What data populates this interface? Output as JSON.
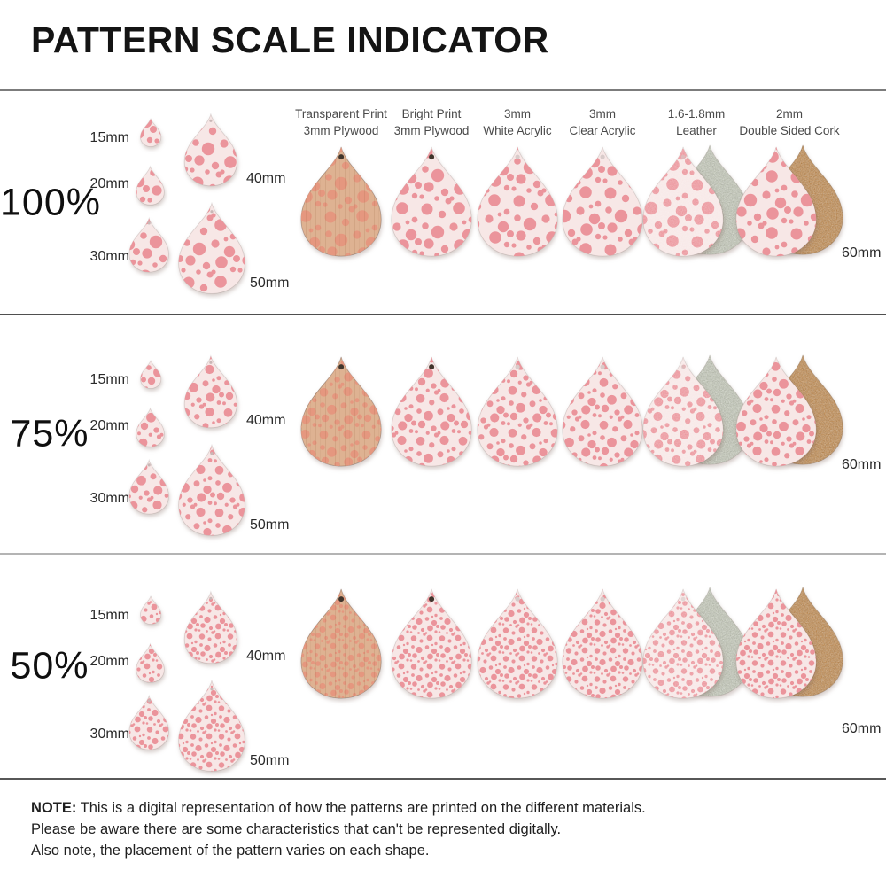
{
  "title": "PATTERN SCALE INDICATOR",
  "size_labels": [
    "15mm",
    "20mm",
    "30mm",
    "40mm",
    "50mm"
  ],
  "large_size_label": "60mm",
  "materials": [
    {
      "name_line1": "Transparent Print",
      "name_line2": "3mm Plywood",
      "finish": "wood",
      "backing": null,
      "hole": "dark"
    },
    {
      "name_line1": "Bright Print",
      "name_line2": "3mm Plywood",
      "finish": "print",
      "backing": null,
      "hole": "dark"
    },
    {
      "name_line1": "3mm",
      "name_line2": "White Acrylic",
      "finish": "print",
      "backing": null,
      "hole": "light"
    },
    {
      "name_line1": "3mm",
      "name_line2": "Clear Acrylic",
      "finish": "print",
      "backing": null,
      "hole": "light"
    },
    {
      "name_line1": "1.6-1.8mm",
      "name_line2": "Leather",
      "finish": "leather",
      "backing": "suede",
      "hole": "faint"
    },
    {
      "name_line1": "2mm",
      "name_line2": "Double Sided Cork",
      "finish": "print",
      "backing": "cork",
      "hole": "none"
    }
  ],
  "rows": [
    {
      "scale_label": "100%",
      "pattern_scale": 1
    },
    {
      "scale_label": "75%",
      "pattern_scale": 0.75
    },
    {
      "scale_label": "50%",
      "pattern_scale": 0.5
    }
  ],
  "note": {
    "label": "NOTE:",
    "lines": [
      "This is a digital representation of how the patterns are printed on the different materials.",
      "Please be aware there are some characteristics that can't be represented digitally.",
      "Also note, the placement of the pattern varies on each shape."
    ]
  },
  "colors": {
    "dot_pink": "#eb949b",
    "base_pink": "#f7e7e6",
    "wood_base": "#deb292",
    "wood_dot": "#e5977f",
    "suede": "#c6cbba",
    "cork": "#c18a4e",
    "hole_dark": "#40352c",
    "hole_light": "#d8cbca",
    "divider_dark": "#4f4f4f",
    "divider_light": "#b4b4b4"
  }
}
